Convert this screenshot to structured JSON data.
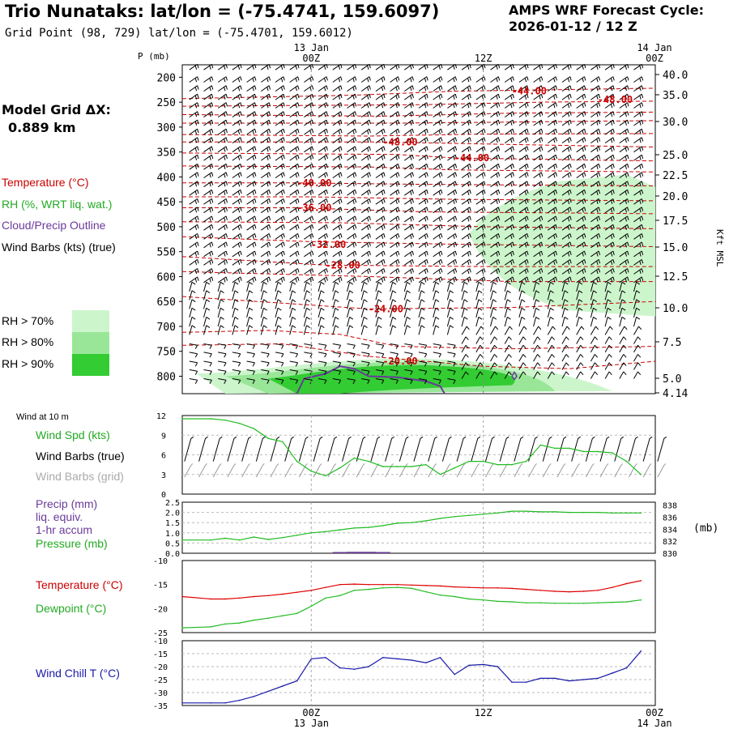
{
  "header": {
    "title": "Trio Nunataks:  lat/lon = (-75.4741, 159.6097)",
    "subtitle": "Grid Point (98, 729) lat/lon = (-75.4701, 159.6012)",
    "cycle_line1": "AMPS WRF Forecast Cycle:",
    "cycle_line2": "2026-01-12 / 12  Z",
    "model_grid_label": "Model Grid ΔX:",
    "model_grid_value": "0.889 km"
  },
  "legend": {
    "temperature": "Temperature (°C)",
    "rh": "RH (%, WRT liq. wat.)",
    "cloud": "Cloud/Precip Outline",
    "wind_barbs": "Wind Barbs (kts) (true)",
    "rh70": "RH > 70%",
    "rh80": "RH > 80%",
    "rh90": "RH > 90%",
    "rh_colors": [
      "#ccf5cc",
      "#99e699",
      "#33cc33"
    ]
  },
  "colors": {
    "temperature": "#cc0000",
    "rh_green": "#22aa22",
    "cloud_outline": "#6a3a9a",
    "precip": "#6a3a9a",
    "pressure": "#22bb22",
    "grid_barbs": "#999999",
    "wind_chill": "#1a1aaa"
  },
  "time_axis": {
    "top_dates": [
      "13 Jan",
      "14 Jan"
    ],
    "top_ticks": [
      "00Z",
      "12Z",
      "00Z"
    ],
    "bottom_ticks": [
      "00Z",
      "12Z",
      "00Z"
    ],
    "bottom_dates": [
      "13 Jan",
      "14 Jan"
    ]
  },
  "chart_data": [
    {
      "type": "heatmap",
      "name": "time-height cross section",
      "pressure_label": "P (mb)",
      "pressure_ticks": [
        "200",
        "250",
        "300",
        "350",
        "400",
        "450",
        "500",
        "550",
        "600",
        "650",
        "700",
        "750",
        "800"
      ],
      "height_label": "Kft MSL",
      "height_ticks": [
        "40.0",
        "35.0",
        "30.0",
        "25.0",
        "22.5",
        "20.0",
        "17.5",
        "15.0",
        "12.5",
        "10.0",
        "7.5",
        "5.0",
        "4.14"
      ],
      "temperature_contour_labels": [
        {
          "text": "-44.00",
          "hour": 14,
          "p": 228
        },
        {
          "text": "-48.00",
          "hour": 20,
          "p": 245
        },
        {
          "text": "-48.00",
          "hour": 5,
          "p": 330
        },
        {
          "text": "-44.00",
          "hour": 10,
          "p": 362
        },
        {
          "text": "-40.00",
          "hour": -1,
          "p": 412
        },
        {
          "text": "-36.00",
          "hour": -1,
          "p": 462
        },
        {
          "text": "-32.00",
          "hour": 0,
          "p": 536
        },
        {
          "text": "-28.00",
          "hour": 1,
          "p": 577
        },
        {
          "text": "-24.00",
          "hour": 4,
          "p": 665
        },
        {
          "text": "-20.00",
          "hour": 5,
          "p": 770
        }
      ]
    },
    {
      "type": "line",
      "name": "wind at 10 m",
      "section_label": "Wind at 10 m",
      "series_labels": {
        "speed": "Wind Spd (kts)",
        "barbs_true": "Wind Barbs (true)",
        "barbs_grid": "Wind Barbs (grid)"
      },
      "y_ticks": [
        "12",
        "9",
        "6",
        "3",
        "0"
      ],
      "ylim": [
        0,
        12
      ],
      "x": [
        -9,
        -7,
        -6,
        -5,
        -4,
        -3,
        -2,
        -1,
        0,
        1,
        2,
        3,
        4,
        5,
        6,
        7,
        8,
        9,
        10,
        11,
        12,
        13,
        14,
        15,
        16,
        17,
        18,
        19,
        20,
        21,
        22,
        23
      ],
      "series": [
        {
          "name": "Wind Spd (kts)",
          "values": [
            11.5,
            11.5,
            11.3,
            10.8,
            10,
            8.5,
            8,
            5,
            3.5,
            2.8,
            4,
            5.5,
            5,
            4.2,
            4.2,
            4.2,
            4.5,
            3,
            4,
            5,
            5,
            4.5,
            4.5,
            5,
            7.5,
            7,
            7,
            6.5,
            6.5,
            6.3,
            5,
            3
          ]
        }
      ]
    },
    {
      "type": "line",
      "name": "precip and pressure",
      "series_labels": {
        "precip": "Precip (mm)",
        "precip2": "liq. equiv.",
        "precip3": "1-hr accum",
        "pressure": "Pressure (mb)"
      },
      "y_ticks_left": [
        "2.5",
        "2.0",
        "1.5",
        "1.0",
        "0.5",
        "0.0"
      ],
      "y_ticks_right": [
        "838",
        "836",
        "834",
        "832",
        "830"
      ],
      "right_unit": "(mb)",
      "ylim_left": [
        0,
        2.5
      ],
      "ylim_right": [
        830,
        838.5
      ],
      "x": [
        -9,
        -7,
        -6,
        -5,
        -4,
        -3,
        -2,
        -1,
        0,
        1,
        2,
        3,
        4,
        5,
        6,
        7,
        8,
        9,
        10,
        11,
        12,
        13,
        14,
        15,
        16,
        17,
        18,
        19,
        20,
        21,
        22,
        23
      ],
      "series": [
        {
          "name": "Pressure (mb)",
          "values": [
            832.2,
            832.2,
            832.5,
            832.2,
            832.7,
            832.3,
            832.6,
            833,
            833.4,
            833.6,
            833.9,
            834.2,
            834.3,
            834.6,
            835,
            835.1,
            835.4,
            835.8,
            836.1,
            836.3,
            836.5,
            836.7,
            837,
            837,
            836.9,
            836.9,
            836.8,
            836.8,
            836.8,
            836.7,
            836.7,
            836.7
          ]
        },
        {
          "name": "Precip (mm)",
          "values": [
            0,
            0,
            0,
            0,
            0,
            0,
            0,
            0,
            0,
            0,
            0.02,
            0.03,
            0.03,
            0.02,
            0,
            0,
            0,
            0,
            0,
            0,
            0,
            0,
            0,
            0,
            0,
            0,
            0,
            0,
            0,
            0,
            0,
            0
          ]
        }
      ]
    },
    {
      "type": "line",
      "name": "temperature and dewpoint",
      "series_labels": {
        "temperature": "Temperature (°C)",
        "dewpoint": "Dewpoint (°C)"
      },
      "y_ticks": [
        "-10",
        "-15",
        "-20",
        "-25"
      ],
      "ylim": [
        -25,
        -10
      ],
      "x": [
        -9,
        -7,
        -6,
        -5,
        -4,
        -3,
        -2,
        -1,
        0,
        1,
        2,
        3,
        4,
        5,
        6,
        7,
        8,
        9,
        10,
        11,
        12,
        13,
        14,
        15,
        16,
        17,
        18,
        19,
        20,
        21,
        22,
        23
      ],
      "series": [
        {
          "name": "Temperature (°C)",
          "values": [
            -17.5,
            -18,
            -18,
            -17.8,
            -17.5,
            -17.3,
            -17,
            -16.6,
            -16.2,
            -15.6,
            -15,
            -14.9,
            -15,
            -15,
            -15,
            -15.1,
            -15.2,
            -15.3,
            -15.5,
            -15.6,
            -15.7,
            -15.7,
            -15.8,
            -16,
            -16.2,
            -16.4,
            -16.5,
            -16.4,
            -16.2,
            -15.6,
            -14.8,
            -14.2
          ]
        },
        {
          "name": "Dewpoint (°C)",
          "values": [
            -24,
            -23.8,
            -23.2,
            -23,
            -22.4,
            -22,
            -21.5,
            -21,
            -19.5,
            -17.8,
            -17.3,
            -16.2,
            -16,
            -15.7,
            -15.6,
            -15.8,
            -16.5,
            -17.2,
            -17.5,
            -18,
            -18.2,
            -18.5,
            -18.6,
            -18.8,
            -18.8,
            -18.9,
            -18.9,
            -18.9,
            -18.8,
            -18.7,
            -18.6,
            -18.2
          ]
        }
      ]
    },
    {
      "type": "line",
      "name": "wind chill",
      "series_labels": {
        "wind_chill": "Wind Chill T (°C)"
      },
      "y_ticks": [
        "-10",
        "-15",
        "-20",
        "-25",
        "-30",
        "-35"
      ],
      "ylim": [
        -35,
        -10
      ],
      "x": [
        -9,
        -7,
        -6,
        -5,
        -4,
        -3,
        -2,
        -1,
        0,
        1,
        2,
        3,
        4,
        5,
        6,
        7,
        8,
        9,
        10,
        11,
        12,
        13,
        14,
        15,
        16,
        17,
        18,
        19,
        20,
        21,
        22,
        23
      ],
      "series": [
        {
          "name": "Wind Chill T (°C)",
          "values": [
            -34,
            -34,
            -34,
            -33,
            -31.5,
            -29.5,
            -27.5,
            -25.5,
            -17,
            -16.5,
            -20.5,
            -21,
            -20,
            -16.5,
            -17,
            -17.5,
            -18.5,
            -16.5,
            -23,
            -19.5,
            -19.2,
            -20,
            -26,
            -26,
            -24.5,
            -24.5,
            -25.5,
            -25,
            -24.5,
            -22.5,
            -20.5,
            -14
          ]
        }
      ]
    }
  ]
}
